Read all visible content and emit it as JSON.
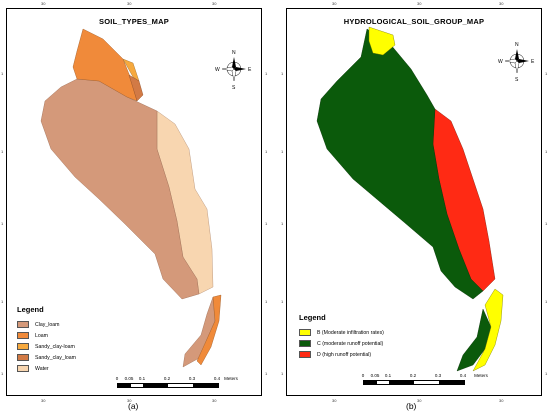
{
  "panel_a": {
    "title": "SOIL_TYPES_MAP",
    "caption": "(a)",
    "top_ticks": [
      "30",
      "30",
      "30"
    ],
    "left_ticks": [
      "1",
      "1",
      "1",
      "1",
      "1"
    ],
    "legend_title": "Legend",
    "legend": [
      {
        "label": "Clay_loam",
        "color": "#d4997a"
      },
      {
        "label": "Loam",
        "color": "#f08a3a"
      },
      {
        "label": "Sandy_clay-loam",
        "color": "#f6a93e"
      },
      {
        "label": "Sandy_clay_loam",
        "color": "#d27a45"
      },
      {
        "label": "Water",
        "color": "#f8d6b0"
      }
    ],
    "scale_labels": [
      "0",
      "0.05",
      "0.1",
      "0.2",
      "0.3",
      "0.4"
    ],
    "scale_unit": "Meters",
    "compass": {
      "n": "N",
      "s": "S",
      "e": "E",
      "w": "W"
    }
  },
  "panel_b": {
    "title": "HYDROLOGICAL_SOIL_GROUP_MAP",
    "caption": "(b)",
    "top_ticks": [
      "30",
      "30",
      "30"
    ],
    "left_ticks": [
      "1",
      "1",
      "1",
      "1",
      "1"
    ],
    "legend_title": "Legend",
    "legend": [
      {
        "label": "B (Moderate infiltration rates)",
        "color": "#ffff00"
      },
      {
        "label": "C (moderate runoff potential)",
        "color": "#0b5a0b"
      },
      {
        "label": "D (high runoff potential)",
        "color": "#ff2a14"
      }
    ],
    "scale_labels": [
      "0",
      "0.05",
      "0.1",
      "0.2",
      "0.3",
      "0.4"
    ],
    "scale_unit": "Meters",
    "compass": {
      "n": "N",
      "s": "S",
      "e": "E",
      "w": "W"
    }
  }
}
